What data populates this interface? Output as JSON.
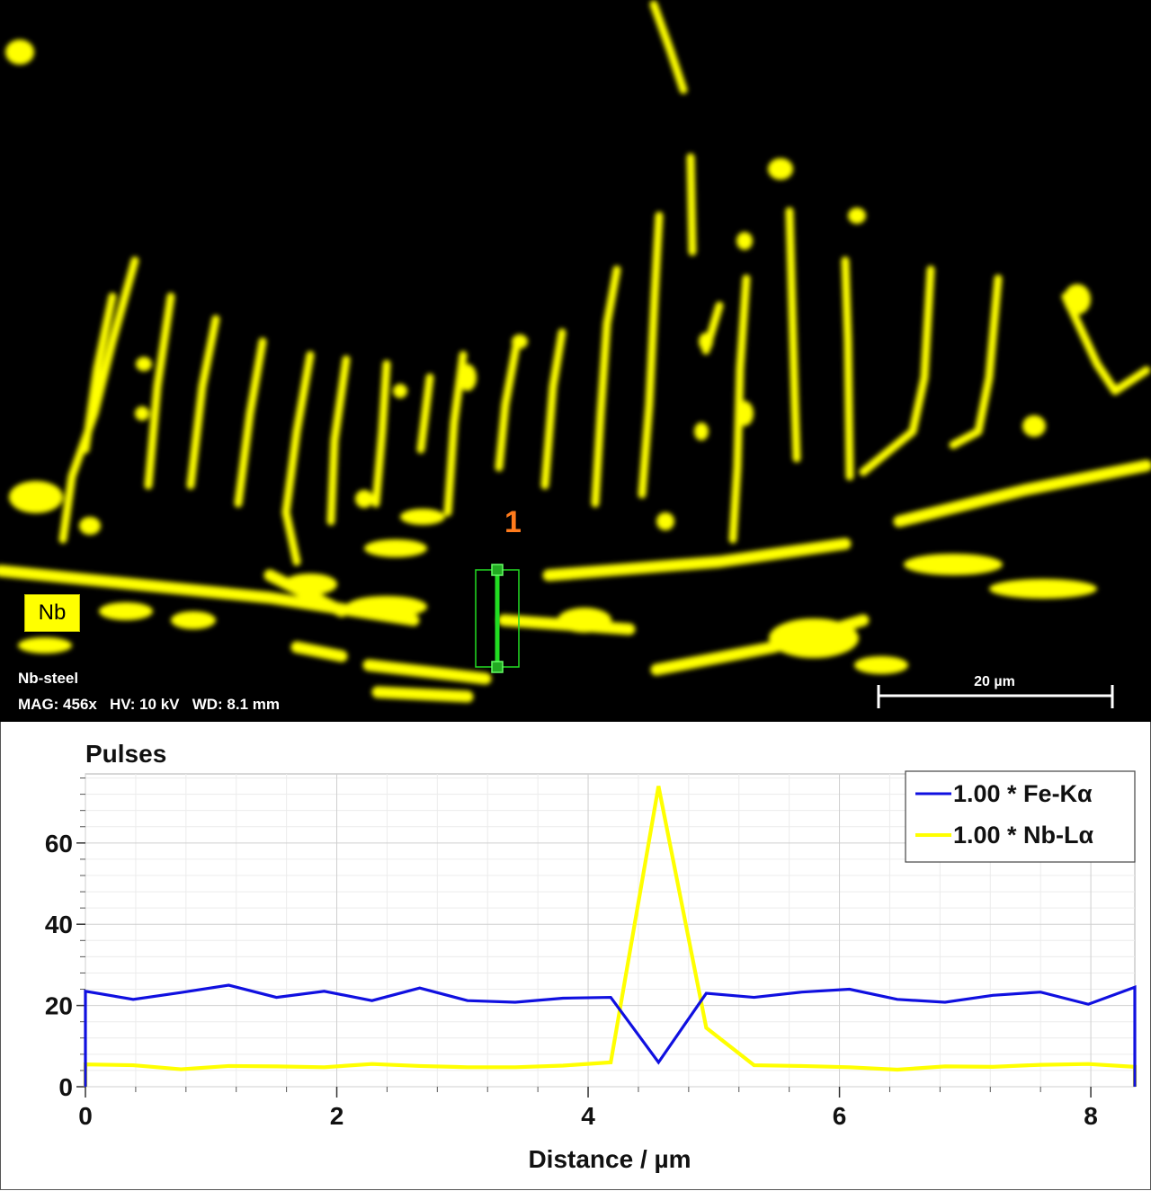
{
  "map": {
    "element_label": "Nb",
    "sample_name": "Nb-steel",
    "acquisition": "MAG: 456x   HV: 10 kV   WD: 8.1 mm",
    "line_marker": "1",
    "scale_bar_label": "20 µm",
    "colors": {
      "background": "#000000",
      "nb_signal": "#ffff00",
      "line_scan": "#22dd22",
      "marker": "#ff7b1c"
    }
  },
  "chart_data": {
    "type": "line",
    "title": "Pulses",
    "xlabel": "Distance / µm",
    "ylabel": "",
    "xlim": [
      0,
      8.35
    ],
    "ylim": [
      0,
      77
    ],
    "x_ticks": [
      0,
      2,
      4,
      6,
      8
    ],
    "y_ticks": [
      0,
      20,
      40,
      60
    ],
    "grid": true,
    "legend_position": "top-right",
    "x": [
      0,
      0.38,
      0.76,
      1.14,
      1.52,
      1.9,
      2.28,
      2.66,
      3.04,
      3.42,
      3.8,
      4.18,
      4.56,
      4.94,
      5.32,
      5.7,
      6.08,
      6.46,
      6.84,
      7.22,
      7.6,
      7.98,
      8.35
    ],
    "series": [
      {
        "name": "1.00 * Fe-Kα",
        "color": "#1010e0",
        "values": [
          23.5,
          21.5,
          23.2,
          25,
          22,
          23.5,
          21.2,
          24.3,
          21.2,
          20.8,
          21.8,
          22,
          6,
          23,
          22,
          23.3,
          24,
          21.5,
          20.8,
          22.5,
          23.3,
          20.3,
          24.5
        ]
      },
      {
        "name": "1.00 * Nb-Lα",
        "color": "#ffff00",
        "values": [
          5.5,
          5.3,
          4.3,
          5.1,
          5,
          4.8,
          5.6,
          5.1,
          4.8,
          4.8,
          5.2,
          6,
          74,
          14.5,
          5.3,
          5.1,
          4.8,
          4.2,
          5,
          4.9,
          5.4,
          5.6,
          4.9
        ]
      }
    ]
  }
}
